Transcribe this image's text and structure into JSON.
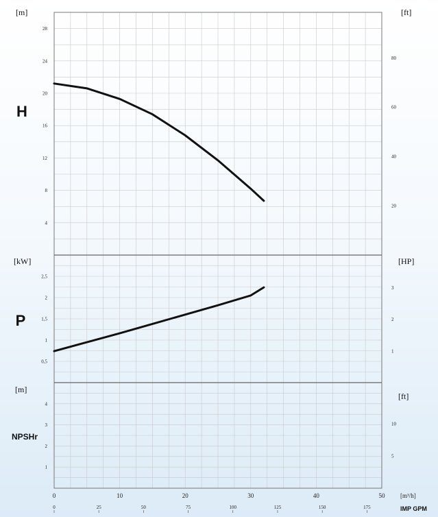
{
  "chart_data": [
    {
      "type": "line",
      "panel_label": "H",
      "left_unit": "[m]",
      "right_unit": "[ft]",
      "xlim": [
        0,
        50
      ],
      "ylim": [
        0,
        30
      ],
      "y_ticks": [
        4,
        8,
        12,
        16,
        20,
        24,
        28
      ],
      "y2_ticks": [
        20,
        40,
        60,
        80
      ],
      "y2_per_y": 3.2808,
      "grid": true,
      "series": [
        {
          "x": [
            0,
            5,
            10,
            15,
            20,
            25,
            30,
            32
          ],
          "values": [
            21.2,
            20.6,
            19.3,
            17.4,
            14.8,
            11.7,
            8.2,
            6.7
          ]
        }
      ]
    },
    {
      "type": "line",
      "panel_label": "P",
      "left_unit": "[kW]",
      "right_unit": "[HP]",
      "xlim": [
        0,
        50
      ],
      "ylim": [
        0,
        3
      ],
      "y_ticks": [
        "0,5",
        "1",
        "1,5",
        "2",
        "2,5"
      ],
      "y_tick_values": [
        0.5,
        1,
        1.5,
        2,
        2.5
      ],
      "y2_ticks": [
        1,
        2,
        3
      ],
      "y2_per_y": 1.341,
      "grid": true,
      "series": [
        {
          "x": [
            0,
            5,
            10,
            15,
            20,
            25,
            30,
            32
          ],
          "values": [
            0.74,
            0.95,
            1.16,
            1.38,
            1.6,
            1.82,
            2.05,
            2.24
          ]
        }
      ]
    },
    {
      "type": "line",
      "panel_label": "NPSHr",
      "left_unit": "[m]",
      "right_unit": "[ft]",
      "xlim": [
        0,
        50
      ],
      "ylim": [
        0,
        5
      ],
      "y_ticks": [
        1,
        2,
        3,
        4
      ],
      "y2_ticks": [
        5,
        10
      ],
      "y2_per_y": 3.2808,
      "grid": true,
      "x_ticks": [
        0,
        10,
        20,
        30,
        40,
        50
      ],
      "x_unit": "[m³/h]",
      "secondary_x_ticks": [
        "0",
        "25",
        "50",
        "75",
        "100",
        "125",
        "150",
        "175"
      ],
      "secondary_x_unit": "IMP GPM",
      "series": []
    }
  ]
}
